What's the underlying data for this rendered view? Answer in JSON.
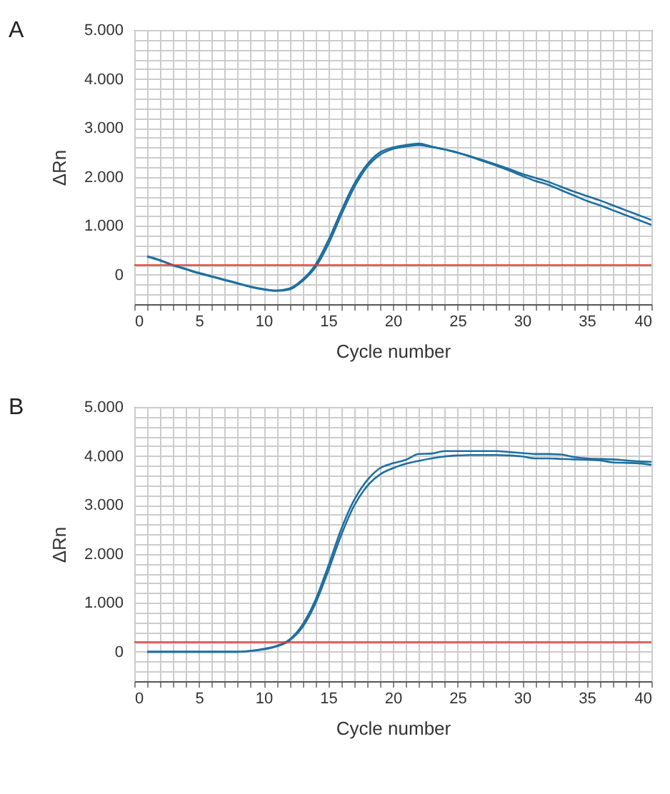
{
  "chart_data": [
    {
      "type": "line",
      "title": "A",
      "xlabel": "Cycle number",
      "ylabel": "ΔRn",
      "x": [
        1,
        2,
        3,
        4,
        5,
        6,
        7,
        8,
        9,
        10,
        11,
        12,
        13,
        14,
        15,
        16,
        17,
        18,
        19,
        20,
        21,
        22,
        23,
        24,
        25,
        26,
        27,
        28,
        29,
        30,
        31,
        32,
        33,
        34,
        35,
        36,
        37,
        38,
        39,
        40
      ],
      "series": [
        {
          "color": "#1f6f9f",
          "values": [
            380,
            300,
            200,
            120,
            40,
            -30,
            -100,
            -170,
            -240,
            -290,
            -320,
            -280,
            -100,
            200,
            700,
            1300,
            1850,
            2250,
            2500,
            2600,
            2650,
            2680,
            2620,
            2560,
            2500,
            2420,
            2340,
            2250,
            2160,
            2060,
            1980,
            1900,
            1800,
            1700,
            1610,
            1520,
            1420,
            1320,
            1220,
            1120
          ]
        },
        {
          "color": "#1f6f9f",
          "values": [
            370,
            290,
            190,
            110,
            30,
            -40,
            -110,
            -180,
            -250,
            -300,
            -330,
            -300,
            -130,
            150,
            620,
            1220,
            1780,
            2200,
            2450,
            2570,
            2620,
            2650,
            2610,
            2560,
            2490,
            2410,
            2320,
            2230,
            2130,
            2020,
            1920,
            1840,
            1730,
            1620,
            1510,
            1420,
            1320,
            1220,
            1120,
            1020
          ]
        }
      ],
      "xlim": [
        0,
        40
      ],
      "xticks": [
        0,
        {
          "value": 1,
          "label": null
        },
        {
          "value": 2,
          "label": null
        },
        {
          "value": 3,
          "label": null
        },
        {
          "value": 4,
          "label": null
        },
        5,
        {
          "value": 6,
          "label": null
        },
        {
          "value": 7,
          "label": null
        },
        {
          "value": 8,
          "label": null
        },
        {
          "value": 9,
          "label": null
        },
        10,
        {
          "value": 11,
          "label": null
        },
        {
          "value": 12,
          "label": null
        },
        {
          "value": 13,
          "label": null
        },
        {
          "value": 14,
          "label": null
        },
        15,
        {
          "value": 16,
          "label": null
        },
        {
          "value": 17,
          "label": null
        },
        {
          "value": 18,
          "label": null
        },
        {
          "value": 19,
          "label": null
        },
        20,
        {
          "value": 21,
          "label": null
        },
        {
          "value": 22,
          "label": null
        },
        {
          "value": 23,
          "label": null
        },
        {
          "value": 24,
          "label": null
        },
        25,
        {
          "value": 26,
          "label": null
        },
        {
          "value": 27,
          "label": null
        },
        {
          "value": 28,
          "label": null
        },
        {
          "value": 29,
          "label": null
        },
        30,
        {
          "value": 31,
          "label": null
        },
        {
          "value": 32,
          "label": null
        },
        {
          "value": 33,
          "label": null
        },
        {
          "value": 34,
          "label": null
        },
        35,
        {
          "value": 36,
          "label": null
        },
        {
          "value": 37,
          "label": null
        },
        {
          "value": 38,
          "label": null
        },
        {
          "value": 39,
          "label": null
        },
        40
      ],
      "ylim": [
        -600,
        5000
      ],
      "yticks": [
        {
          "value": -600,
          "label": null
        },
        {
          "value": -400,
          "label": null
        },
        {
          "value": -200,
          "label": null
        },
        0,
        {
          "value": 200,
          "label": null
        },
        {
          "value": 400,
          "label": null
        },
        {
          "value": 600,
          "label": null
        },
        {
          "value": 800,
          "label": null
        },
        {
          "value": 1000,
          "label": "1.000"
        },
        {
          "value": 1200,
          "label": null
        },
        {
          "value": 1400,
          "label": null
        },
        {
          "value": 1600,
          "label": null
        },
        {
          "value": 1800,
          "label": null
        },
        {
          "value": 2000,
          "label": "2.000"
        },
        {
          "value": 2200,
          "label": null
        },
        {
          "value": 2400,
          "label": null
        },
        {
          "value": 2600,
          "label": null
        },
        {
          "value": 2800,
          "label": null
        },
        {
          "value": 3000,
          "label": "3.000"
        },
        {
          "value": 3200,
          "label": null
        },
        {
          "value": 3400,
          "label": null
        },
        {
          "value": 3600,
          "label": null
        },
        {
          "value": 3800,
          "label": null
        },
        {
          "value": 4000,
          "label": "4.000"
        },
        {
          "value": 4200,
          "label": null
        },
        {
          "value": 4400,
          "label": null
        },
        {
          "value": 4600,
          "label": null
        },
        {
          "value": 4800,
          "label": null
        },
        {
          "value": 5000,
          "label": "5.000"
        }
      ],
      "ref_lines": [
        {
          "axis": "y",
          "value": 200,
          "color": "#e03a2f"
        }
      ],
      "grid": true,
      "marker": "none",
      "line_style": "solid"
    },
    {
      "type": "line",
      "title": "B",
      "xlabel": "Cycle number",
      "ylabel": "ΔRn",
      "x": [
        1,
        2,
        3,
        4,
        5,
        6,
        7,
        8,
        9,
        10,
        11,
        12,
        13,
        14,
        15,
        16,
        17,
        18,
        19,
        20,
        21,
        22,
        23,
        24,
        25,
        26,
        27,
        28,
        29,
        30,
        31,
        32,
        33,
        34,
        35,
        36,
        37,
        38,
        39,
        40
      ],
      "series": [
        {
          "color": "#1f6f9f",
          "values": [
            0,
            0,
            0,
            0,
            0,
            0,
            0,
            0,
            20,
            60,
            120,
            250,
            550,
            1050,
            1750,
            2500,
            3100,
            3500,
            3750,
            3850,
            3920,
            4040,
            4050,
            4100,
            4100,
            4100,
            4100,
            4100,
            4080,
            4060,
            4040,
            4040,
            4030,
            3980,
            3950,
            3940,
            3930,
            3910,
            3890,
            3880
          ]
        },
        {
          "color": "#1f6f9f",
          "values": [
            0,
            0,
            0,
            0,
            0,
            0,
            0,
            0,
            15,
            50,
            110,
            230,
            500,
            980,
            1650,
            2380,
            2980,
            3380,
            3620,
            3750,
            3840,
            3900,
            3950,
            3990,
            4010,
            4020,
            4020,
            4020,
            4010,
            3990,
            3950,
            3950,
            3940,
            3930,
            3920,
            3910,
            3870,
            3860,
            3850,
            3820
          ]
        }
      ],
      "xlim": [
        0,
        40
      ],
      "xticks": [
        0,
        {
          "value": 1,
          "label": null
        },
        {
          "value": 2,
          "label": null
        },
        {
          "value": 3,
          "label": null
        },
        {
          "value": 4,
          "label": null
        },
        5,
        {
          "value": 6,
          "label": null
        },
        {
          "value": 7,
          "label": null
        },
        {
          "value": 8,
          "label": null
        },
        {
          "value": 9,
          "label": null
        },
        10,
        {
          "value": 11,
          "label": null
        },
        {
          "value": 12,
          "label": null
        },
        {
          "value": 13,
          "label": null
        },
        {
          "value": 14,
          "label": null
        },
        15,
        {
          "value": 16,
          "label": null
        },
        {
          "value": 17,
          "label": null
        },
        {
          "value": 18,
          "label": null
        },
        {
          "value": 19,
          "label": null
        },
        20,
        {
          "value": 21,
          "label": null
        },
        {
          "value": 22,
          "label": null
        },
        {
          "value": 23,
          "label": null
        },
        {
          "value": 24,
          "label": null
        },
        25,
        {
          "value": 26,
          "label": null
        },
        {
          "value": 27,
          "label": null
        },
        {
          "value": 28,
          "label": null
        },
        {
          "value": 29,
          "label": null
        },
        30,
        {
          "value": 31,
          "label": null
        },
        {
          "value": 32,
          "label": null
        },
        {
          "value": 33,
          "label": null
        },
        {
          "value": 34,
          "label": null
        },
        35,
        {
          "value": 36,
          "label": null
        },
        {
          "value": 37,
          "label": null
        },
        {
          "value": 38,
          "label": null
        },
        {
          "value": 39,
          "label": null
        },
        40
      ],
      "ylim": [
        -600,
        5000
      ],
      "yticks": [
        {
          "value": -600,
          "label": null
        },
        {
          "value": -400,
          "label": null
        },
        {
          "value": -200,
          "label": null
        },
        0,
        {
          "value": 200,
          "label": null
        },
        {
          "value": 400,
          "label": null
        },
        {
          "value": 600,
          "label": null
        },
        {
          "value": 800,
          "label": null
        },
        {
          "value": 1000,
          "label": "1.000"
        },
        {
          "value": 1200,
          "label": null
        },
        {
          "value": 1400,
          "label": null
        },
        {
          "value": 1600,
          "label": null
        },
        {
          "value": 1800,
          "label": null
        },
        {
          "value": 2000,
          "label": "2.000"
        },
        {
          "value": 2200,
          "label": null
        },
        {
          "value": 2400,
          "label": null
        },
        {
          "value": 2600,
          "label": null
        },
        {
          "value": 2800,
          "label": null
        },
        {
          "value": 3000,
          "label": "3.000"
        },
        {
          "value": 3200,
          "label": null
        },
        {
          "value": 3400,
          "label": null
        },
        {
          "value": 3600,
          "label": null
        },
        {
          "value": 3800,
          "label": null
        },
        {
          "value": 4000,
          "label": "4.000"
        },
        {
          "value": 4200,
          "label": null
        },
        {
          "value": 4400,
          "label": null
        },
        {
          "value": 4600,
          "label": null
        },
        {
          "value": 4800,
          "label": null
        },
        {
          "value": 5000,
          "label": "5.000"
        }
      ],
      "ref_lines": [
        {
          "axis": "y",
          "value": 200,
          "color": "#e03a2f"
        }
      ],
      "grid": true,
      "marker": "none",
      "line_style": "solid"
    }
  ]
}
